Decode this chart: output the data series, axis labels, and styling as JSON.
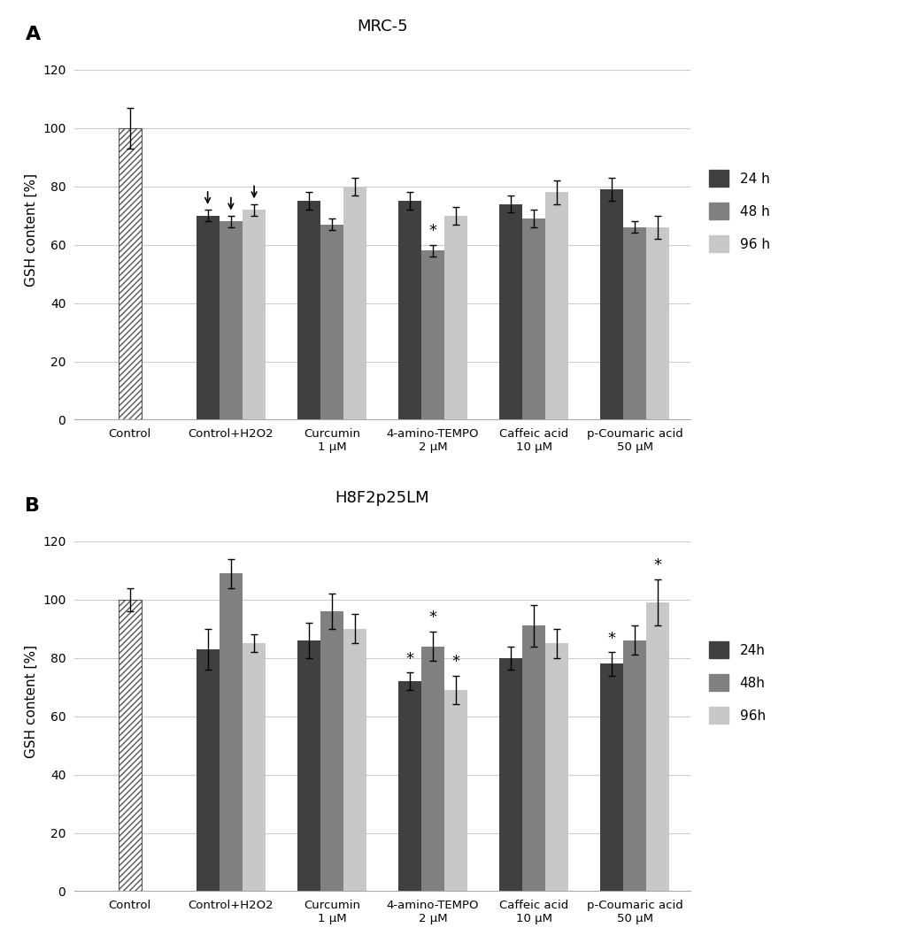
{
  "panel_A": {
    "title": "MRC-5",
    "categories": [
      "Control",
      "Control+H2O2",
      "Curcumin\n1 μM",
      "4-amino-TEMPO\n2 μM",
      "Caffeic acid\n10 μM",
      "p-Coumaric acid\n50 μM"
    ],
    "values_24h": [
      100,
      70,
      75,
      75,
      74,
      79
    ],
    "values_48h": [
      null,
      68,
      67,
      58,
      69,
      66
    ],
    "values_96h": [
      null,
      72,
      80,
      70,
      78,
      66
    ],
    "errors_24h": [
      7,
      2,
      3,
      3,
      3,
      4
    ],
    "errors_48h": [
      null,
      2,
      2,
      2,
      3,
      2
    ],
    "errors_96h": [
      null,
      2,
      3,
      3,
      4,
      4
    ],
    "arrow_indices_24h": [
      1
    ],
    "arrow_indices_48h": [
      1
    ],
    "arrow_indices_96h": [
      1
    ],
    "stars_48h": [
      3
    ],
    "ylabel": "GSH content [%]",
    "ylim": [
      0,
      130
    ],
    "yticks": [
      0,
      20,
      40,
      60,
      80,
      100,
      120
    ],
    "legend_labels": [
      "24 h",
      "48 h",
      "96 h"
    ]
  },
  "panel_B": {
    "title": "H8F2p25LM",
    "categories": [
      "Control",
      "Control+H2O2",
      "Curcumin\n1 μM",
      "4-amino-TEMPO\n2 μM",
      "Caffeic acid\n10 μM",
      "p-Coumaric acid\n50 μM"
    ],
    "values_24h": [
      100,
      83,
      86,
      72,
      80,
      78
    ],
    "values_48h": [
      null,
      109,
      96,
      84,
      91,
      86
    ],
    "values_96h": [
      null,
      85,
      90,
      69,
      85,
      99
    ],
    "errors_24h": [
      4,
      7,
      6,
      3,
      4,
      4
    ],
    "errors_48h": [
      null,
      5,
      6,
      5,
      7,
      5
    ],
    "errors_96h": [
      null,
      3,
      5,
      5,
      5,
      8
    ],
    "stars_24h": [
      3,
      5
    ],
    "stars_48h": [
      3
    ],
    "stars_96h": [
      3,
      5
    ],
    "ylabel": "GSH content [%]",
    "ylim": [
      0,
      130
    ],
    "yticks": [
      0,
      20,
      40,
      60,
      80,
      100,
      120
    ],
    "legend_labels": [
      "24h",
      "48h",
      "96h"
    ]
  },
  "color_24h": "#404040",
  "color_48h": "#808080",
  "color_96h": "#c8c8c8",
  "bar_width": 0.23,
  "fig_bg": "#ffffff"
}
